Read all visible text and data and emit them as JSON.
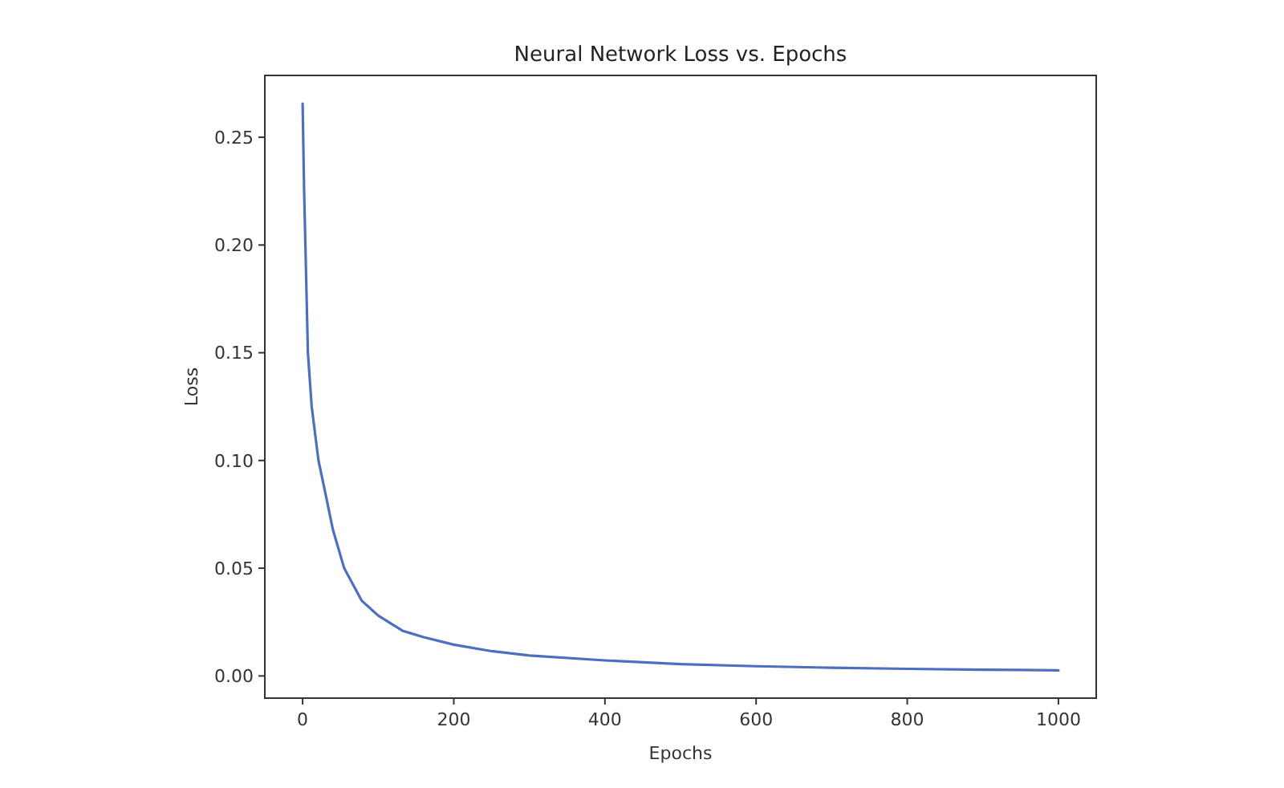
{
  "chart_data": {
    "type": "line",
    "title": "Neural Network Loss vs. Epochs",
    "xlabel": "Epochs",
    "ylabel": "Loss",
    "x": [
      0,
      2,
      4,
      7,
      12,
      21,
      30,
      40,
      55,
      78,
      100,
      132,
      160,
      200,
      250,
      300,
      400,
      500,
      600,
      700,
      800,
      900,
      1000
    ],
    "series": [
      {
        "color": "#4c6fbf",
        "values": [
          0.2656,
          0.225,
          0.195,
          0.15,
          0.125,
          0.1,
          0.085,
          0.068,
          0.05,
          0.035,
          0.028,
          0.021,
          0.018,
          0.0145,
          0.0115,
          0.0095,
          0.0072,
          0.0055,
          0.0045,
          0.0038,
          0.0033,
          0.0029,
          0.0026
        ]
      }
    ],
    "xlim": [
      -50,
      1050
    ],
    "ylim": [
      -0.0103,
      0.2787
    ],
    "xticks": [
      0,
      200,
      400,
      600,
      800,
      1000
    ],
    "yticks": [
      {
        "value": 0,
        "label": "0.00"
      },
      {
        "value": 0.05,
        "label": "0.05"
      },
      {
        "value": 0.1,
        "label": "0.10"
      },
      {
        "value": 0.15,
        "label": "0.15"
      },
      {
        "value": 0.2,
        "label": "0.20"
      },
      {
        "value": 0.25,
        "label": "0.25"
      }
    ],
    "grid": false,
    "line_style": "solid"
  }
}
